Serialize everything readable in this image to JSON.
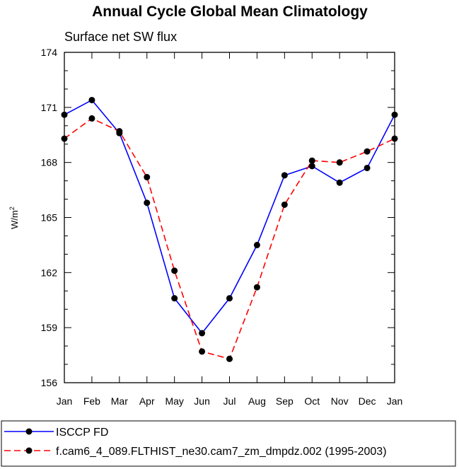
{
  "chart_data": {
    "type": "line",
    "title": "Annual Cycle Global Mean Climatology",
    "subtitle": "Surface net SW flux",
    "ylabel_main": "W/m",
    "ylabel_sup": "2",
    "categories": [
      "Jan",
      "Feb",
      "Mar",
      "Apr",
      "May",
      "Jun",
      "Jul",
      "Aug",
      "Sep",
      "Oct",
      "Nov",
      "Dec",
      "Jan"
    ],
    "ylim": [
      156,
      174
    ],
    "yticks": [
      156,
      159,
      162,
      165,
      168,
      171,
      174
    ],
    "grid": false,
    "legend_position": "bottom",
    "series": [
      {
        "name": "ISCCP FD",
        "color": "#0000ff",
        "dash": "solid",
        "values": [
          170.6,
          171.4,
          169.6,
          165.8,
          160.6,
          158.7,
          160.6,
          163.5,
          167.3,
          167.8,
          166.9,
          167.7,
          170.6
        ]
      },
      {
        "name": "f.cam6_4_089.FLTHIST_ne30.cam7_zm_dmpdz.002 (1995-2003)",
        "color": "#ff0000",
        "dash": "dashed",
        "values": [
          169.3,
          170.4,
          169.7,
          167.2,
          162.1,
          157.7,
          157.3,
          161.2,
          165.7,
          168.1,
          168.0,
          168.6,
          169.3
        ]
      }
    ]
  }
}
